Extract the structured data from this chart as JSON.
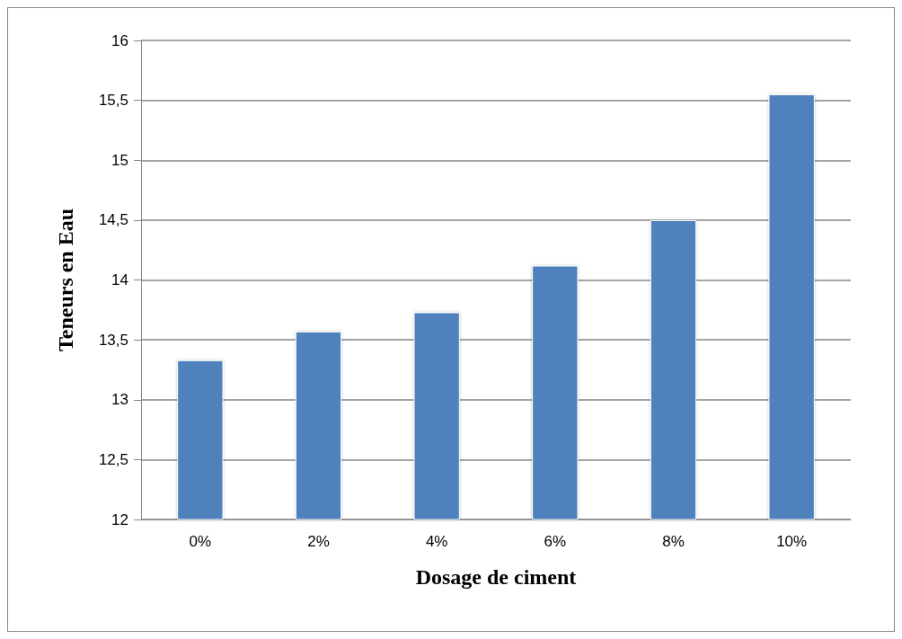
{
  "chart_data": {
    "type": "bar",
    "xlabel": "Dosage de ciment",
    "ylabel": "Teneurs en Eau",
    "categories": [
      "0%",
      "2%",
      "4%",
      "6%",
      "8%",
      "10%"
    ],
    "values": [
      13.33,
      13.57,
      13.73,
      14.12,
      14.5,
      15.55
    ],
    "color": "#4f81bd",
    "ylim": [
      12,
      16
    ],
    "yticks": [
      12,
      {
        "value": 12.5,
        "label": "12,5"
      },
      13,
      {
        "value": 13.5,
        "label": "13,5"
      },
      14,
      {
        "value": 14.5,
        "label": "14,5"
      },
      15,
      {
        "value": 15.5,
        "label": "15,5"
      },
      16
    ],
    "grid": "y"
  }
}
